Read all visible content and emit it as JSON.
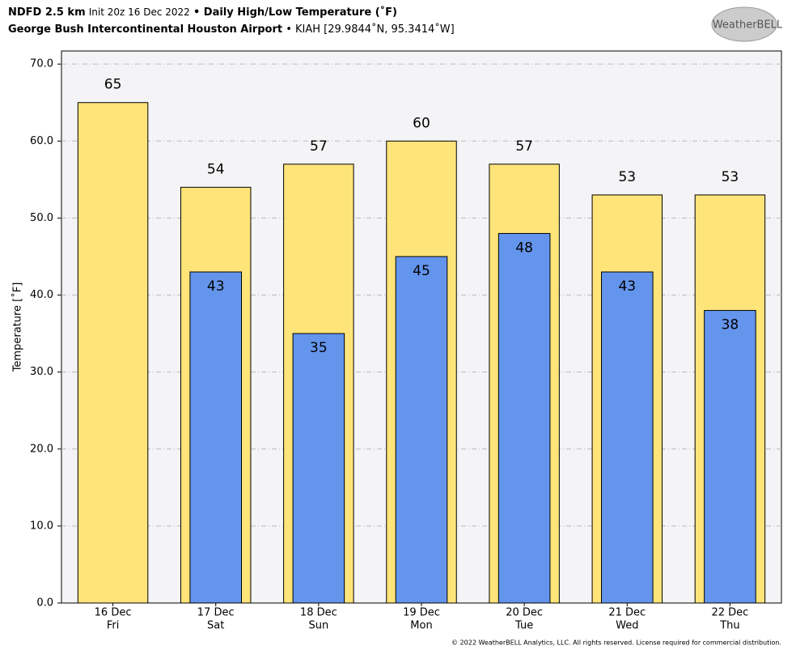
{
  "chart_data": {
    "type": "overlap-bar",
    "title": {
      "model": "NDFD 2.5 km",
      "init": "Init 20z 16 Dec 2022",
      "product": "• Daily High/Low Temperature (˚F)"
    },
    "subtitle": {
      "station": "George Bush Intercontinental Houston Airport",
      "location": "• KIAH [29.9844˚N, 95.3414˚W]"
    },
    "logo": "WeatherBELL",
    "y_label": "Temperature [˚F]",
    "footer": "© 2022 WeatherBELL Analytics, LLC. All rights reserved. License required for commercial distribution.",
    "categories": [
      [
        "16 Dec",
        "Fri"
      ],
      [
        "17 Dec",
        "Sat"
      ],
      [
        "18 Dec",
        "Sun"
      ],
      [
        "19 Dec",
        "Mon"
      ],
      [
        "20 Dec",
        "Tue"
      ],
      [
        "21 Dec",
        "Wed"
      ],
      [
        "22 Dec",
        "Thu"
      ]
    ],
    "series": [
      {
        "color": "#ffe47a",
        "values": [
          65,
          54,
          57,
          60,
          57,
          53,
          53
        ]
      },
      {
        "color": "#6495ec",
        "values": [
          null,
          43,
          35,
          45,
          48,
          43,
          38
        ]
      }
    ],
    "ylim": [
      0,
      71.7
    ],
    "yticks": [
      {
        "value": 0,
        "label": "0.0"
      },
      {
        "value": 10,
        "label": "10.0"
      },
      {
        "value": 20,
        "label": "20.0"
      },
      {
        "value": 30,
        "label": "30.0"
      },
      {
        "value": 40,
        "label": "40.0"
      },
      {
        "value": 50,
        "label": "50.0"
      },
      {
        "value": 60,
        "label": "60.0"
      },
      {
        "value": 70,
        "label": "70.0"
      }
    ],
    "grid": true
  }
}
